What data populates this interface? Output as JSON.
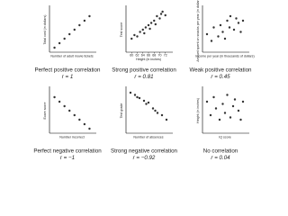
{
  "chart_data": [
    {
      "type": "scatter",
      "title": "Perfect positive correlation",
      "subtitle": "r = 1",
      "x_label": "Number of adult movie tickets",
      "y_label": "Total cost (in dollars)",
      "x": [
        1,
        2,
        3,
        4,
        5,
        6,
        7,
        8
      ],
      "values": [
        2,
        4,
        6,
        8,
        10,
        12,
        14,
        16
      ],
      "xlim": [
        0,
        9
      ],
      "ylim": [
        0,
        20
      ],
      "color": "#333333"
    },
    {
      "type": "scatter",
      "title": "Strong positive correlation",
      "subtitle": "r = 0.81",
      "x_label": "Height (in inches)",
      "y_label": "Test score",
      "x": [
        60,
        61,
        62,
        63,
        64,
        64.5,
        65,
        66,
        66.5,
        67,
        68,
        68.5,
        69,
        70,
        70.5,
        71,
        72
      ],
      "values": [
        30,
        38,
        35,
        45,
        50,
        42,
        55,
        60,
        52,
        65,
        70,
        62,
        80,
        75,
        85,
        90,
        82
      ],
      "xlim": [
        58,
        74
      ],
      "ylim": [
        0,
        100
      ],
      "xticks": [
        60,
        62,
        64,
        66,
        68,
        70,
        72
      ],
      "color": "#333333"
    },
    {
      "type": "scatter",
      "title": "Weak positive correlation",
      "subtitle": "r = 0.45",
      "x_label": "Income per year (in thousands of dollars)",
      "y_label": "Amount spent on snacks per year (in dollars)",
      "x": [
        10,
        20,
        25,
        35,
        40,
        45,
        50,
        55,
        60,
        62,
        70,
        75,
        80,
        85,
        90
      ],
      "values": [
        40,
        25,
        55,
        35,
        60,
        45,
        30,
        70,
        55,
        80,
        50,
        75,
        65,
        45,
        70
      ],
      "xlim": [
        0,
        100
      ],
      "ylim": [
        0,
        100
      ],
      "color": "#333333"
    },
    {
      "type": "scatter",
      "title": "Perfect negative correlation",
      "subtitle": "r = −1",
      "x_label": "Number incorrect",
      "y_label": "Exam score",
      "x": [
        1,
        2,
        3,
        4,
        5,
        6,
        7,
        8
      ],
      "values": [
        16,
        14,
        12,
        10,
        8,
        6,
        4,
        2
      ],
      "xlim": [
        0,
        9
      ],
      "ylim": [
        0,
        20
      ],
      "color": "#333333"
    },
    {
      "type": "scatter",
      "title": "Strong negative correlation",
      "subtitle": "r = −0.92",
      "x_label": "Number of absences",
      "y_label": "Test grade",
      "x": [
        1,
        2,
        2.5,
        3,
        4,
        4.5,
        5,
        6,
        6.5,
        7,
        8,
        9
      ],
      "values": [
        90,
        85,
        80,
        78,
        72,
        65,
        68,
        55,
        50,
        45,
        40,
        30
      ],
      "xlim": [
        0,
        10
      ],
      "ylim": [
        0,
        100
      ],
      "color": "#333333"
    },
    {
      "type": "scatter",
      "title": "No correlation",
      "subtitle": "r = 0.04",
      "x_label": "IQ score",
      "y_label": "Height (in inches)",
      "x": [
        10,
        18,
        25,
        30,
        38,
        45,
        50,
        55,
        62,
        68,
        72,
        80,
        85,
        90
      ],
      "values": [
        70,
        40,
        80,
        55,
        30,
        65,
        45,
        85,
        35,
        60,
        75,
        50,
        30,
        70
      ],
      "xlim": [
        0,
        100
      ],
      "ylim": [
        0,
        100
      ],
      "color": "#333333"
    }
  ]
}
